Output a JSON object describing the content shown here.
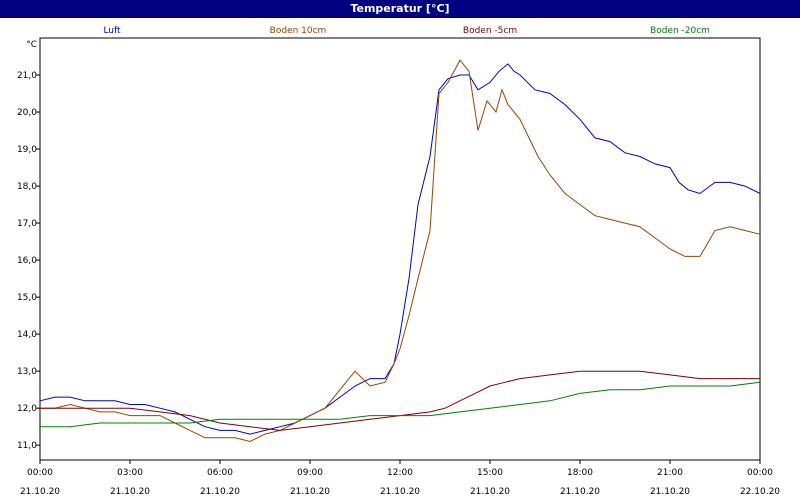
{
  "window": {
    "title": "Temperatur [°C]"
  },
  "chart_data": {
    "type": "line",
    "title": "Temperatur [°C]",
    "ylabel": "°C",
    "ylim": [
      10.6,
      22.0
    ],
    "yticks": [
      11.0,
      12.0,
      13.0,
      14.0,
      15.0,
      16.0,
      17.0,
      18.0,
      19.0,
      20.0,
      21.0
    ],
    "ytick_labels": [
      "11,0",
      "12,0",
      "13,0",
      "14,0",
      "15,0",
      "16,0",
      "17,0",
      "18,0",
      "19,0",
      "20,0",
      "21,0"
    ],
    "xlim": [
      0,
      24
    ],
    "xticks": [
      {
        "x": 0,
        "time": "00:00",
        "date": "21.10.20"
      },
      {
        "x": 3,
        "time": "03:00",
        "date": "21.10.20"
      },
      {
        "x": 6,
        "time": "06:00",
        "date": "21.10.20"
      },
      {
        "x": 9,
        "time": "09:00",
        "date": "21.10.20"
      },
      {
        "x": 12,
        "time": "12:00",
        "date": "21.10.20"
      },
      {
        "x": 15,
        "time": "15:00",
        "date": "21.10.20"
      },
      {
        "x": 18,
        "time": "18:00",
        "date": "21.10.20"
      },
      {
        "x": 21,
        "time": "21:00",
        "date": "21.10.20"
      },
      {
        "x": 24,
        "time": "00:00",
        "date": "22.10.20"
      }
    ],
    "grid": true,
    "legend_position": "top",
    "series": [
      {
        "name": "Luft",
        "color": "#0000cc",
        "x": [
          0,
          0.5,
          1,
          1.5,
          2,
          2.5,
          3,
          3.5,
          4,
          4.5,
          5,
          5.5,
          6,
          6.5,
          7,
          7.5,
          8,
          8.5,
          9,
          9.5,
          10,
          10.5,
          11,
          11.5,
          11.8,
          12,
          12.3,
          12.6,
          13,
          13.3,
          13.6,
          14,
          14.3,
          14.6,
          15,
          15.3,
          15.6,
          15.8,
          16,
          16.5,
          17,
          17.5,
          18,
          18.5,
          19,
          19.5,
          20,
          20.5,
          21,
          21.3,
          21.6,
          22,
          22.5,
          23,
          23.5,
          24
        ],
        "y": [
          12.2,
          12.3,
          12.3,
          12.2,
          12.2,
          12.2,
          12.1,
          12.1,
          12.0,
          11.9,
          11.7,
          11.5,
          11.4,
          11.4,
          11.3,
          11.4,
          11.5,
          11.6,
          11.8,
          12.0,
          12.3,
          12.6,
          12.8,
          12.8,
          13.2,
          14.0,
          15.5,
          17.5,
          18.8,
          20.6,
          20.9,
          21.0,
          21.0,
          20.6,
          20.8,
          21.1,
          21.3,
          21.1,
          21.0,
          20.6,
          20.5,
          20.2,
          19.8,
          19.3,
          19.2,
          18.9,
          18.8,
          18.6,
          18.5,
          18.1,
          17.9,
          17.8,
          18.1,
          18.1,
          18.0,
          17.8
        ]
      },
      {
        "name": "Boden 10cm",
        "color": "#994400",
        "x": [
          0,
          0.5,
          1,
          1.5,
          2,
          2.5,
          3,
          3.5,
          4,
          4.5,
          5,
          5.5,
          6,
          6.5,
          7,
          7.5,
          8,
          8.5,
          9,
          9.5,
          10,
          10.5,
          11,
          11.5,
          11.8,
          12,
          12.3,
          12.6,
          13,
          13.3,
          13.6,
          14,
          14.3,
          14.6,
          14.9,
          15.2,
          15.4,
          15.6,
          16,
          16.3,
          16.6,
          17,
          17.5,
          18,
          18.5,
          19,
          19.5,
          20,
          20.5,
          21,
          21.5,
          22,
          22.5,
          23,
          23.5,
          24
        ],
        "y": [
          12.0,
          12.0,
          12.1,
          12.0,
          11.9,
          11.9,
          11.8,
          11.8,
          11.8,
          11.6,
          11.4,
          11.2,
          11.2,
          11.2,
          11.1,
          11.3,
          11.4,
          11.6,
          11.8,
          12.0,
          12.5,
          13.0,
          12.6,
          12.7,
          13.2,
          13.6,
          14.5,
          15.5,
          16.8,
          20.5,
          20.8,
          21.4,
          21.1,
          19.5,
          20.3,
          20.0,
          20.6,
          20.2,
          19.8,
          19.3,
          18.8,
          18.3,
          17.8,
          17.5,
          17.2,
          17.1,
          17.0,
          16.9,
          16.6,
          16.3,
          16.1,
          16.1,
          16.8,
          16.9,
          16.8,
          16.7
        ]
      },
      {
        "name": "Boden -5cm",
        "color": "#800000",
        "x": [
          0,
          1,
          2,
          3,
          4,
          5,
          6,
          7,
          8,
          9,
          10,
          11,
          12,
          13,
          13.5,
          14,
          14.5,
          15,
          15.5,
          16,
          17,
          18,
          19,
          20,
          21,
          22,
          23,
          24
        ],
        "y": [
          12.0,
          12.0,
          12.0,
          12.0,
          11.9,
          11.8,
          11.6,
          11.5,
          11.4,
          11.5,
          11.6,
          11.7,
          11.8,
          11.9,
          12.0,
          12.2,
          12.4,
          12.6,
          12.7,
          12.8,
          12.9,
          13.0,
          13.0,
          13.0,
          12.9,
          12.8,
          12.8,
          12.8
        ]
      },
      {
        "name": "Boden -20cm",
        "color": "#008000",
        "x": [
          0,
          1,
          2,
          3,
          4,
          5,
          6,
          7,
          8,
          9,
          10,
          11,
          12,
          13,
          14,
          15,
          16,
          17,
          18,
          19,
          20,
          21,
          22,
          23,
          24
        ],
        "y": [
          11.5,
          11.5,
          11.6,
          11.6,
          11.6,
          11.6,
          11.7,
          11.7,
          11.7,
          11.7,
          11.7,
          11.8,
          11.8,
          11.8,
          11.9,
          12.0,
          12.1,
          12.2,
          12.4,
          12.5,
          12.5,
          12.6,
          12.6,
          12.6,
          12.7
        ]
      }
    ]
  }
}
